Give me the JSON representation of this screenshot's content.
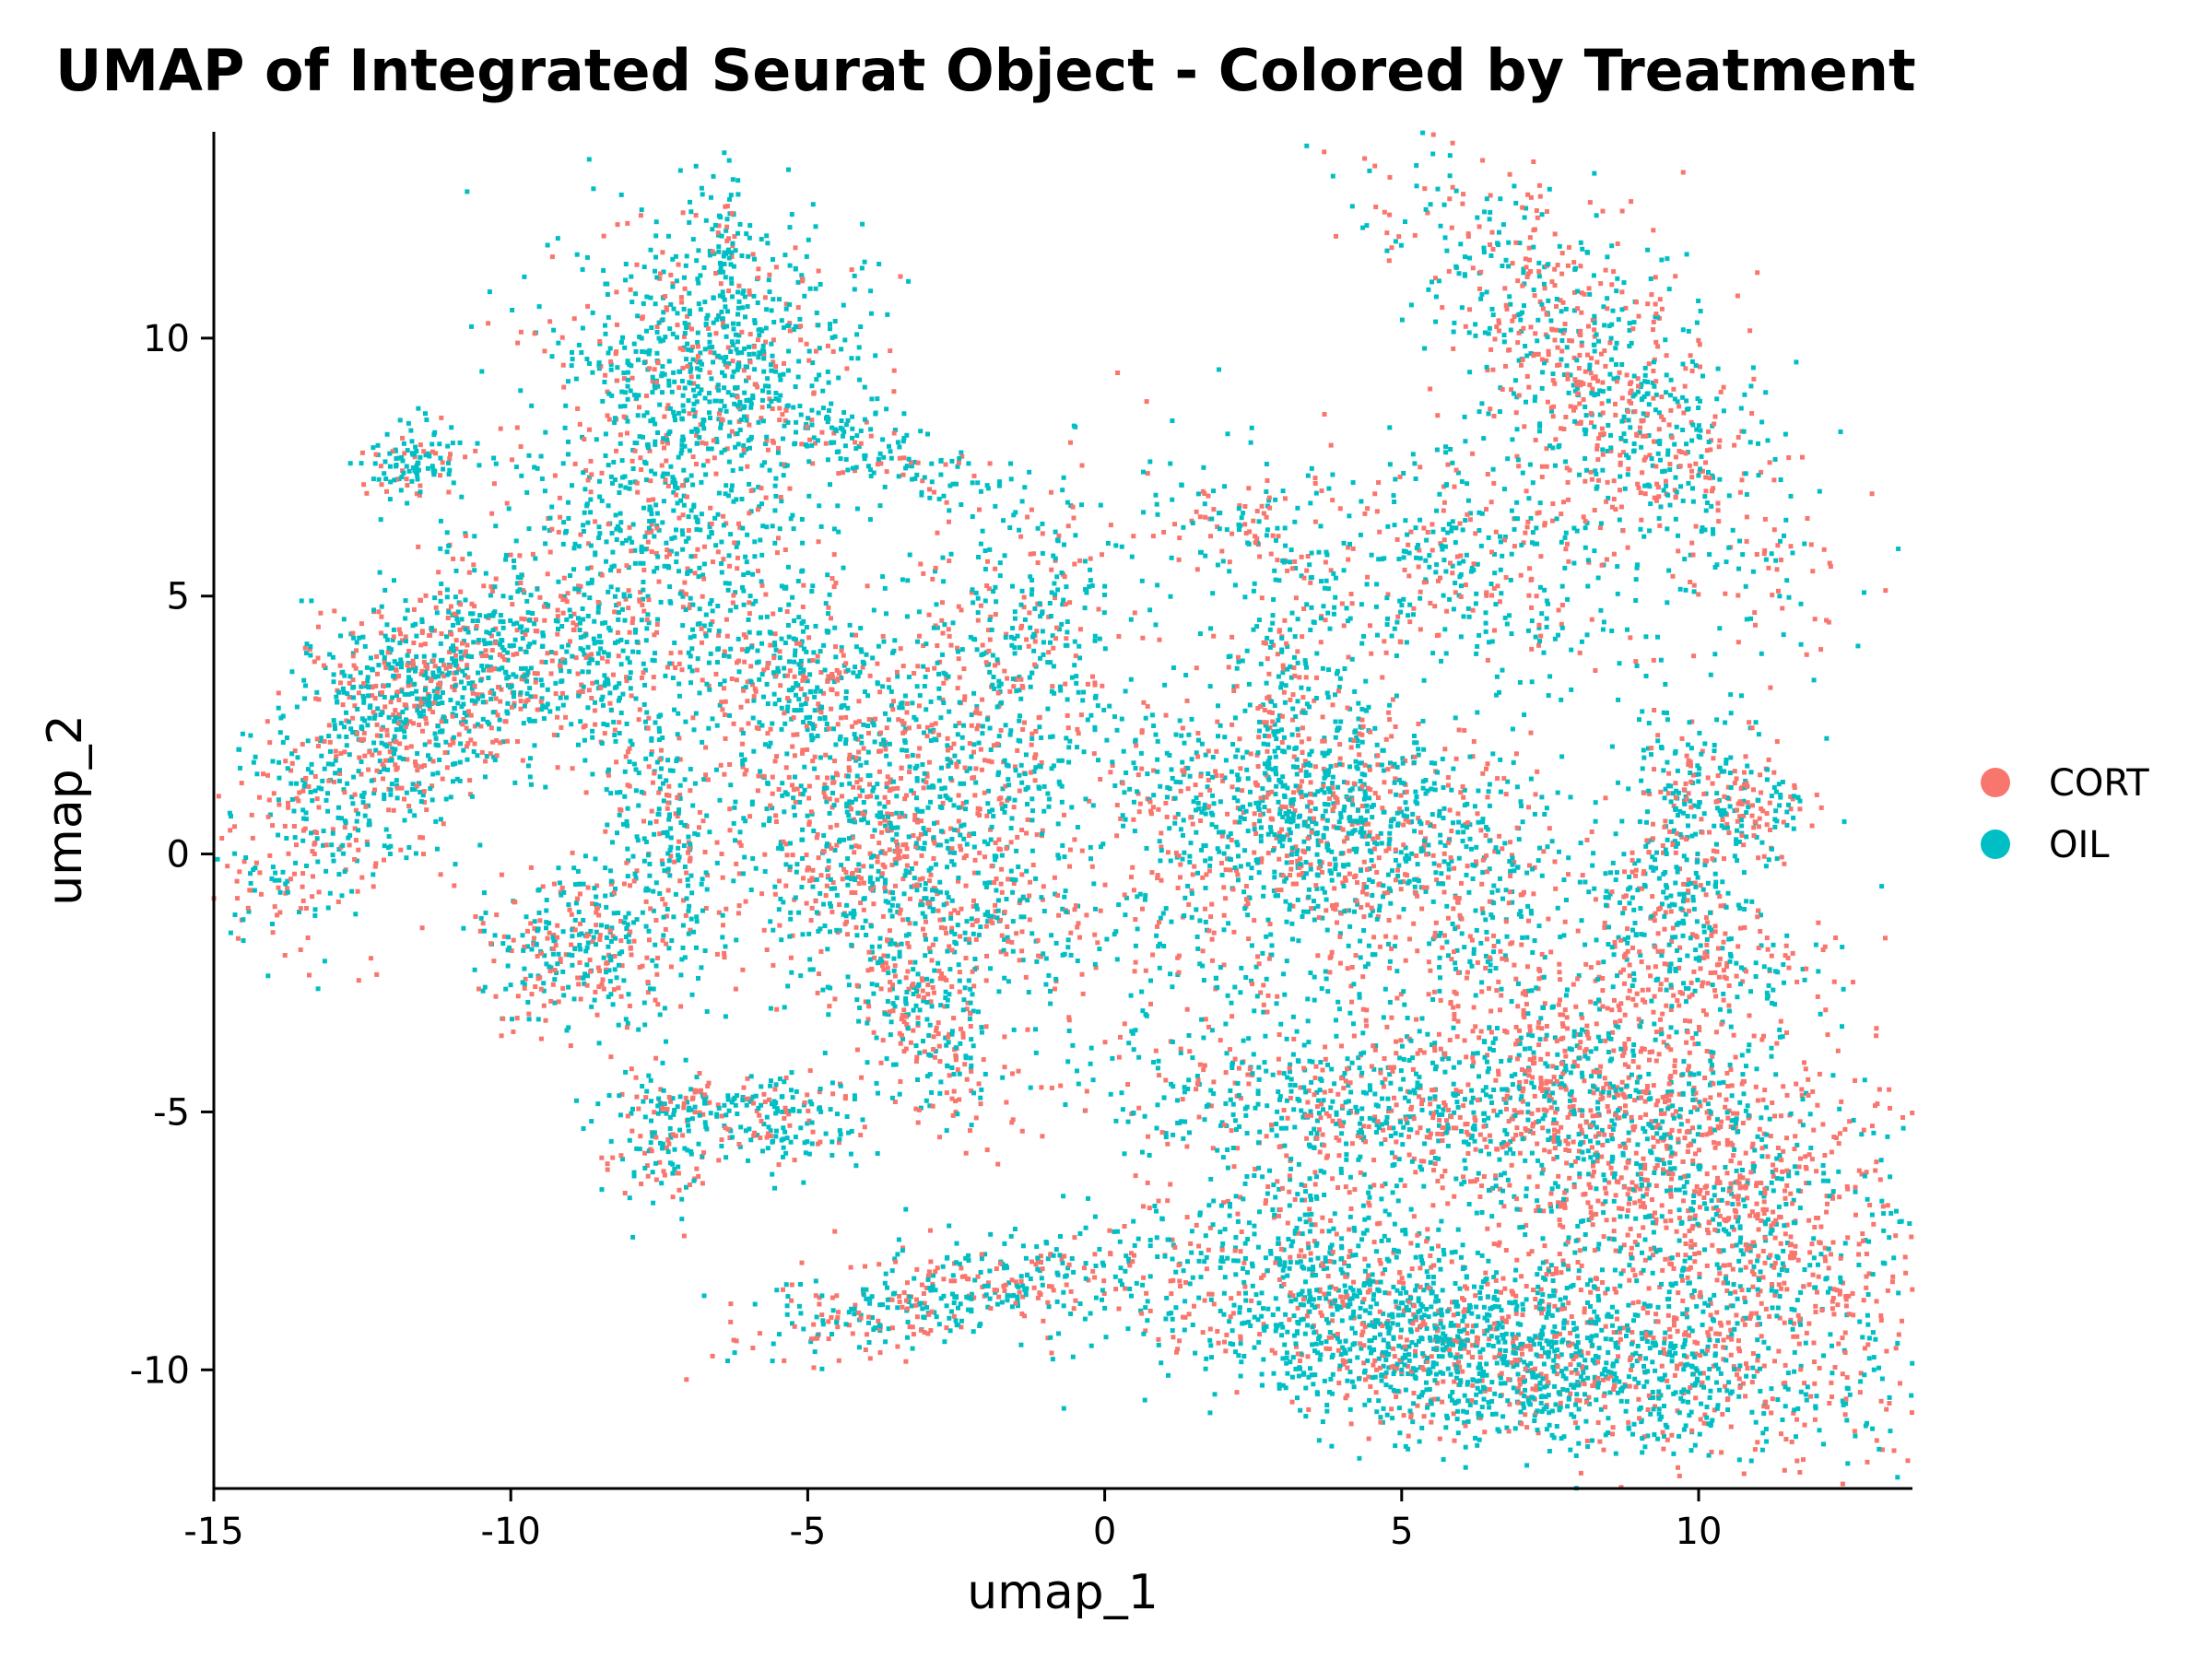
{
  "chart_data": {
    "type": "scatter",
    "title": "UMAP of Integrated Seurat Object - Colored by Treatment",
    "xlabel": "umap_1",
    "ylabel": "umap_2",
    "xlim": [
      -15,
      13.6
    ],
    "ylim": [
      -12.3,
      14
    ],
    "xticks": [
      -15,
      -10,
      -5,
      0,
      5,
      10
    ],
    "yticks": [
      10,
      5,
      0,
      -5,
      -10
    ],
    "grid": false,
    "legend": {
      "position": "right",
      "entries": [
        "CORT",
        "OIL"
      ]
    },
    "colors": {
      "CORT": "#F8766D",
      "OIL": "#00BFC4"
    },
    "series": [
      {
        "name": "CORT",
        "color": "#F8766D"
      },
      {
        "name": "OIL",
        "color": "#00BFC4"
      }
    ],
    "clusters": [
      {
        "cx": -12.0,
        "cy": 2.3,
        "sx": 0.9,
        "sy": 2.2,
        "rot": -35,
        "n": 900,
        "cort_share": 0.45
      },
      {
        "cx": -10.0,
        "cy": 3.6,
        "sx": 1.6,
        "sy": 0.8,
        "rot": 10,
        "n": 500,
        "cort_share": 0.35
      },
      {
        "cx": -11.6,
        "cy": 7.6,
        "sx": 0.5,
        "sy": 0.4,
        "rot": 0,
        "n": 120,
        "cort_share": 0.25
      },
      {
        "cx": -7.0,
        "cy": 6.5,
        "sx": 1.3,
        "sy": 2.5,
        "rot": 5,
        "n": 900,
        "cort_share": 0.3
      },
      {
        "cx": -6.5,
        "cy": 10.0,
        "sx": 1.3,
        "sy": 1.2,
        "rot": 0,
        "n": 450,
        "cort_share": 0.2
      },
      {
        "cx": -6.4,
        "cy": 12.0,
        "sx": 0.2,
        "sy": 0.6,
        "rot": 0,
        "n": 60,
        "cort_share": 0.2
      },
      {
        "cx": -4.2,
        "cy": 8.0,
        "sx": 1.8,
        "sy": 0.3,
        "rot": -25,
        "n": 200,
        "cort_share": 0.25
      },
      {
        "cx": -8.8,
        "cy": -1.8,
        "sx": 0.9,
        "sy": 0.8,
        "rot": 20,
        "n": 350,
        "cort_share": 0.45
      },
      {
        "cx": -7.6,
        "cy": 0.8,
        "sx": 0.4,
        "sy": 1.5,
        "rot": 15,
        "n": 180,
        "cort_share": 0.3
      },
      {
        "cx": -4.9,
        "cy": 3.4,
        "sx": 0.8,
        "sy": 0.7,
        "rot": 0,
        "n": 200,
        "cort_share": 0.3
      },
      {
        "cx": -3.8,
        "cy": 0.3,
        "sx": 1.6,
        "sy": 1.5,
        "rot": 10,
        "n": 900,
        "cort_share": 0.45
      },
      {
        "cx": -1.7,
        "cy": 3.6,
        "sx": 1.0,
        "sy": 1.8,
        "rot": -25,
        "n": 500,
        "cort_share": 0.45
      },
      {
        "cx": -3.0,
        "cy": -3.3,
        "sx": 0.5,
        "sy": 1.1,
        "rot": 25,
        "n": 250,
        "cort_share": 0.55
      },
      {
        "cx": -6.0,
        "cy": -4.8,
        "sx": 1.1,
        "sy": 0.25,
        "rot": 0,
        "n": 150,
        "cort_share": 0.35
      },
      {
        "cx": -7.4,
        "cy": -5.6,
        "sx": 0.5,
        "sy": 0.7,
        "rot": 0,
        "n": 120,
        "cort_share": 0.5
      },
      {
        "cx": -5.3,
        "cy": -5.5,
        "sx": 0.7,
        "sy": 0.3,
        "rot": 0,
        "n": 80,
        "cort_share": 0.3
      },
      {
        "cx": -1.8,
        "cy": -1.5,
        "sx": 0.6,
        "sy": 0.5,
        "rot": 0,
        "n": 80,
        "cort_share": 0.35
      },
      {
        "cx": 1.5,
        "cy": -1.8,
        "sx": 2.0,
        "sy": 1.4,
        "rot": 0,
        "n": 300,
        "cort_share": 0.45
      },
      {
        "cx": 3.8,
        "cy": 0.7,
        "sx": 2.0,
        "sy": 1.1,
        "rot": -15,
        "n": 1100,
        "cort_share": 0.35
      },
      {
        "cx": 3.2,
        "cy": 3.5,
        "sx": 0.5,
        "sy": 1.8,
        "rot": 10,
        "n": 200,
        "cort_share": 0.35
      },
      {
        "cx": 6.0,
        "cy": 5.6,
        "sx": 1.4,
        "sy": 1.2,
        "rot": 0,
        "n": 400,
        "cort_share": 0.35
      },
      {
        "cx": 2.3,
        "cy": 6.5,
        "sx": 0.9,
        "sy": 0.6,
        "rot": 0,
        "n": 100,
        "cort_share": 0.4
      },
      {
        "cx": 8.5,
        "cy": 9.0,
        "sx": 1.0,
        "sy": 2.6,
        "rot": 35,
        "n": 900,
        "cort_share": 0.5
      },
      {
        "cx": 9.8,
        "cy": 1.3,
        "sx": 0.6,
        "sy": 0.9,
        "rot": 0,
        "n": 150,
        "cort_share": 0.3
      },
      {
        "cx": 10.8,
        "cy": 1.0,
        "sx": 0.6,
        "sy": 0.4,
        "rot": 0,
        "n": 120,
        "cort_share": 0.55
      },
      {
        "cx": 9.6,
        "cy": -0.6,
        "sx": 0.8,
        "sy": 0.7,
        "rot": 0,
        "n": 200,
        "cort_share": 0.3
      },
      {
        "cx": 4.3,
        "cy": -5.0,
        "sx": 2.2,
        "sy": 0.7,
        "rot": -5,
        "n": 600,
        "cort_share": 0.35
      },
      {
        "cx": -2.5,
        "cy": -8.5,
        "sx": 1.8,
        "sy": 0.45,
        "rot": 12,
        "n": 400,
        "cort_share": 0.45
      },
      {
        "cx": 9.3,
        "cy": -5.8,
        "sx": 1.6,
        "sy": 3.2,
        "rot": 40,
        "n": 2200,
        "cort_share": 0.6
      },
      {
        "cx": 6.2,
        "cy": -9.5,
        "sx": 2.8,
        "sy": 0.9,
        "rot": -10,
        "n": 1800,
        "cort_share": 0.3
      },
      {
        "cx": 3.2,
        "cy": -7.3,
        "sx": 1.2,
        "sy": 0.8,
        "rot": 0,
        "n": 200,
        "cort_share": 0.35
      },
      {
        "cx": 10.5,
        "cy": -2.2,
        "sx": 0.8,
        "sy": 0.4,
        "rot": 0,
        "n": 100,
        "cort_share": 0.5
      }
    ]
  }
}
